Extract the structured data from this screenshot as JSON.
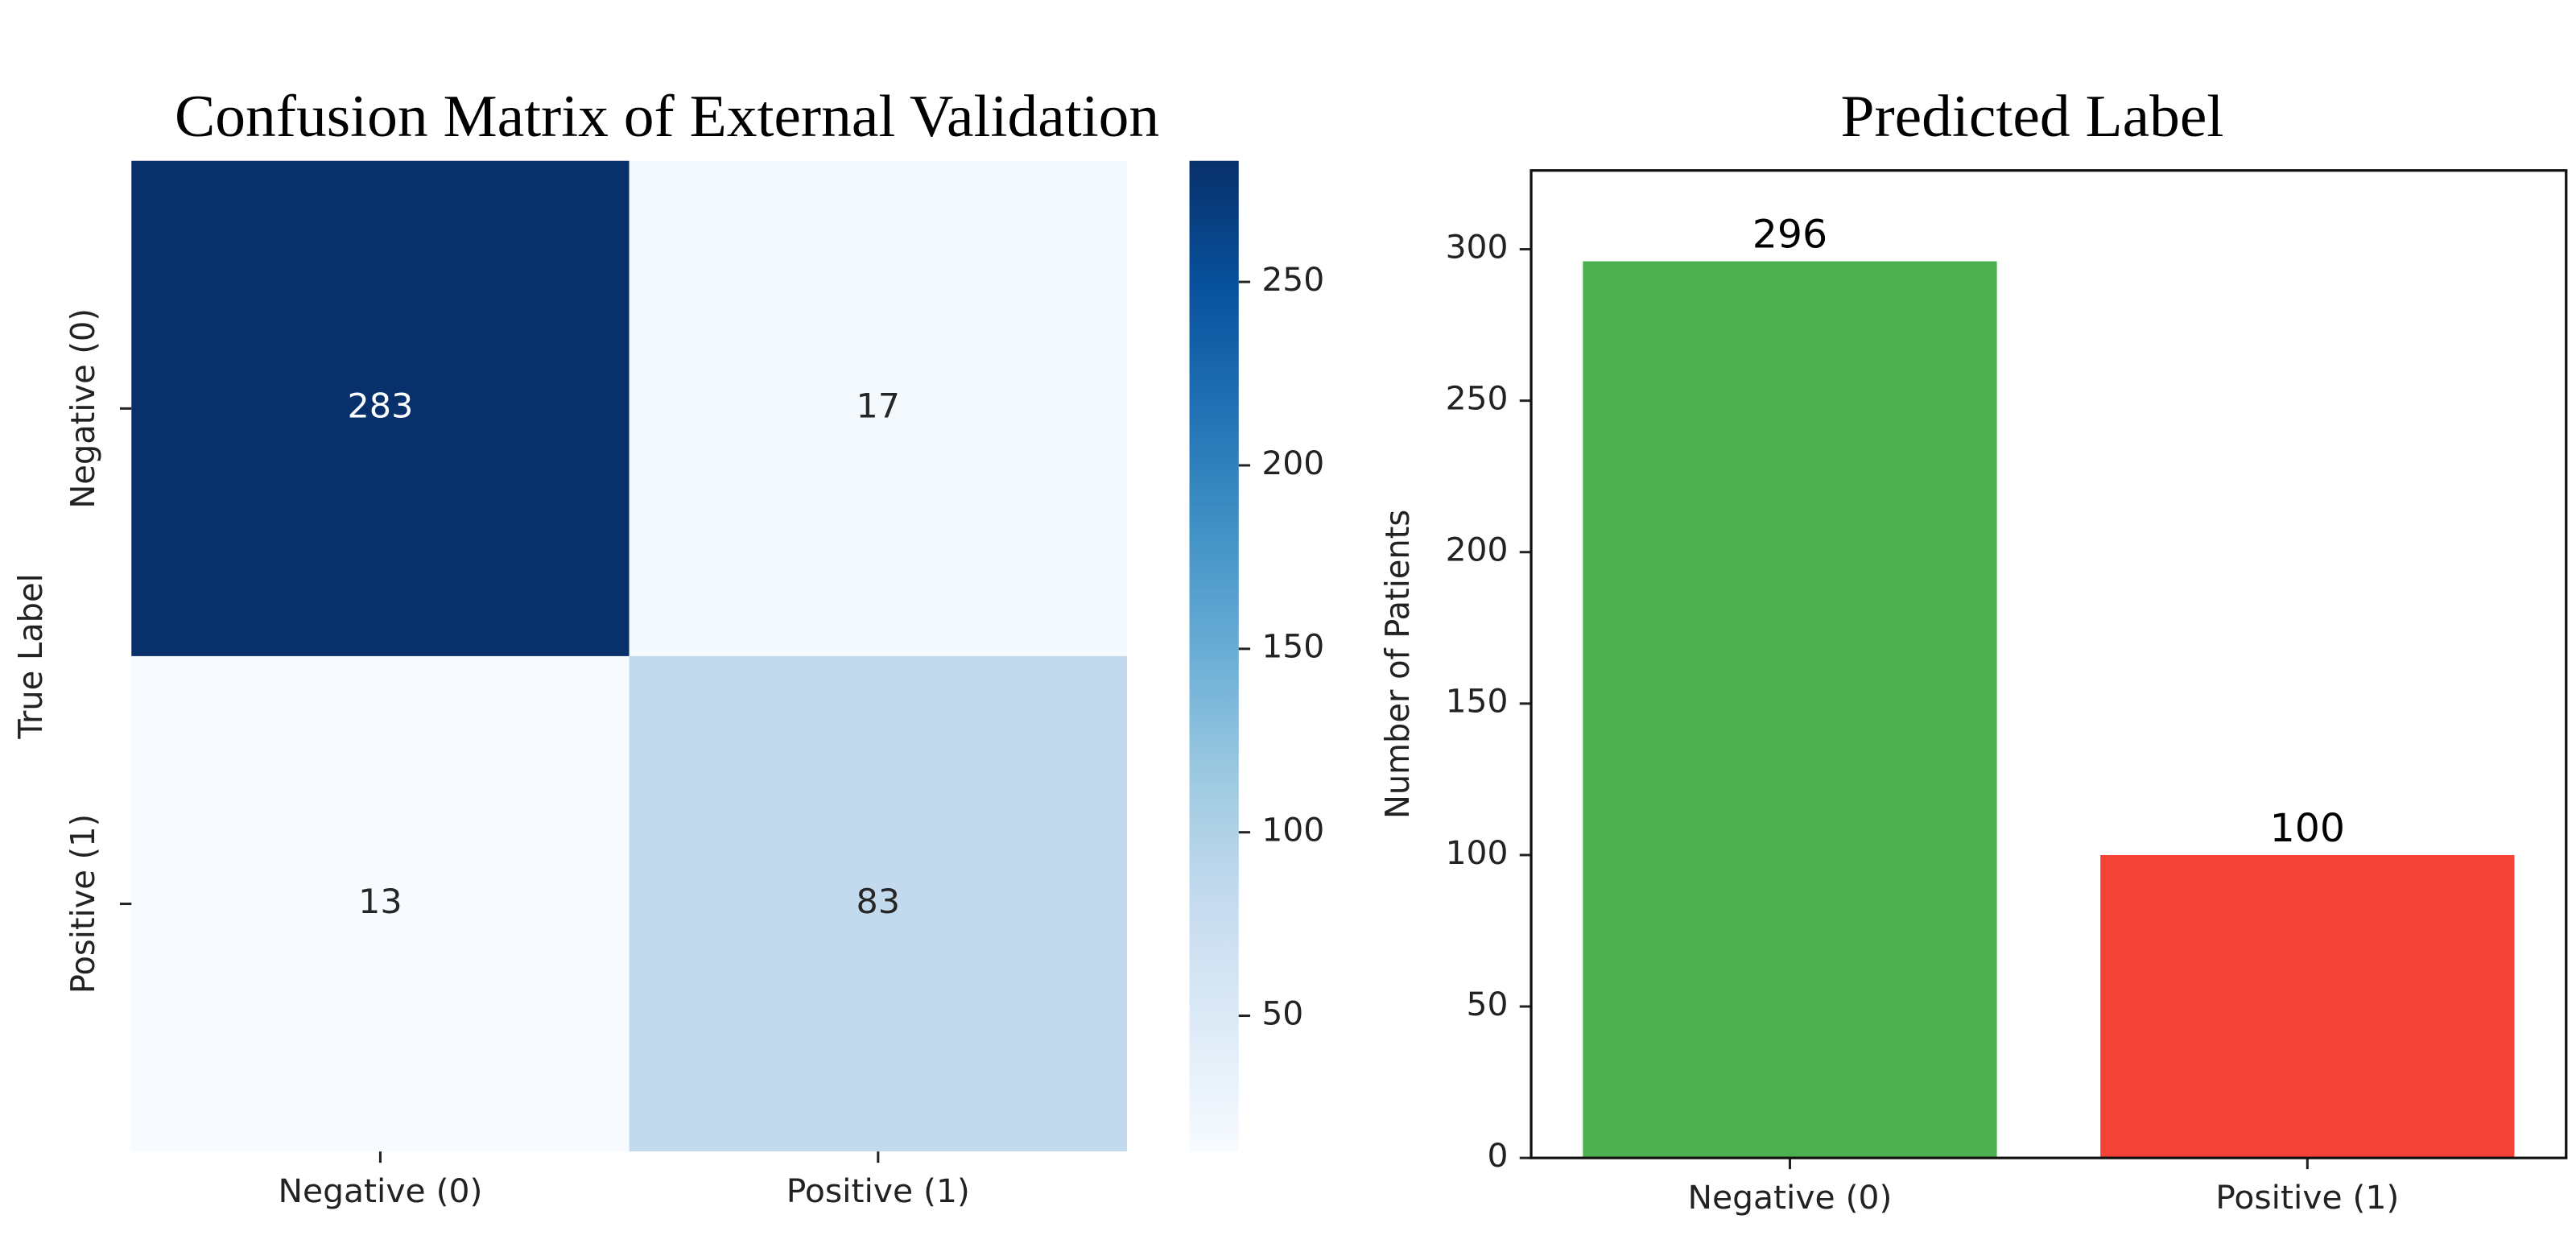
{
  "chart_data": [
    {
      "type": "heatmap",
      "title": "Confusion Matrix of External Validation",
      "ylabel": "True Label",
      "x_categories": [
        "Negative (0)",
        "Positive (1)"
      ],
      "y_categories": [
        "Negative (0)",
        "Positive (1)"
      ],
      "values": [
        [
          283,
          17
        ],
        [
          13,
          83
        ]
      ],
      "clim": [
        13,
        283
      ],
      "cticks": [
        50,
        100,
        150,
        200,
        250
      ]
    },
    {
      "type": "bar",
      "title": "Predicted Label",
      "ylabel": "Number of Patients",
      "categories": [
        "Negative (0)",
        "Positive (1)"
      ],
      "values": [
        296,
        100
      ],
      "colors": [
        "#4caf50",
        "#f44336"
      ],
      "ylim": [
        0,
        326
      ],
      "yticks": [
        0,
        50,
        100,
        150,
        200,
        250,
        300
      ]
    }
  ]
}
